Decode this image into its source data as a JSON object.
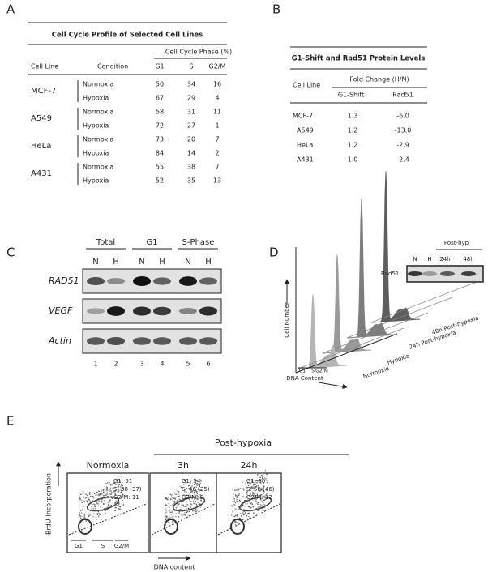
{
  "panel_labels": [
    "A",
    "B",
    "C",
    "D",
    "E"
  ],
  "panel_a": {
    "title": "Cell Cycle Profile of Selected Cell Lines",
    "group_header": "Cell Cycle Phase (%)",
    "columns": [
      "Cell Line",
      "Condition",
      "G1",
      "S",
      "G2/M"
    ],
    "rows": [
      {
        "cell_line": "MCF-7",
        "conditions": [
          {
            "condition": "Normoxia",
            "values": [
              50,
              34,
              16
            ]
          },
          {
            "condition": "Hypoxia",
            "values": [
              67,
              29,
              4
            ]
          }
        ]
      },
      {
        "cell_line": "A549",
        "conditions": [
          {
            "condition": "Normoxia",
            "values": [
              58,
              31,
              11
            ]
          },
          {
            "condition": "Hypoxia",
            "values": [
              72,
              27,
              1
            ]
          }
        ]
      },
      {
        "cell_line": "HeLa",
        "conditions": [
          {
            "condition": "Normoxia",
            "values": [
              73,
              20,
              7
            ]
          },
          {
            "condition": "Hypoxia",
            "values": [
              84,
              14,
              2
            ]
          }
        ]
      },
      {
        "cell_line": "A431",
        "conditions": [
          {
            "condition": "Normoxia",
            "values": [
              55,
              38,
              7
            ]
          },
          {
            "condition": "Hypoxia",
            "values": [
              52,
              35,
              13
            ]
          }
        ]
      }
    ]
  },
  "panel_b": {
    "title": "G1-Shift and Rad51 Protein Levels",
    "group_header": "Fold Change (H/N)",
    "columns": [
      "Cell Line",
      "G1-Shift",
      "Rad51"
    ],
    "rows": [
      [
        "MCF-7",
        "1.3",
        "-6.0"
      ],
      [
        "A549",
        "1.2",
        "-13.0"
      ],
      [
        "HeLa",
        "1.2",
        "-2.9"
      ],
      [
        "A431",
        "1.0",
        "-2.4"
      ]
    ]
  },
  "panel_c": {
    "groups": [
      "Total",
      "G1",
      "S-Phase"
    ],
    "lane_conditions": [
      "N",
      "H",
      "N",
      "H",
      "N",
      "H"
    ],
    "genes": [
      "RAD51",
      "VEGF",
      "Actin"
    ],
    "lane_numbers": [
      "1",
      "2",
      "3",
      "4",
      "5",
      "6"
    ]
  },
  "panel_d": {
    "y_axis": "Cell Number",
    "x_axis": "DNA Content",
    "phases": [
      "G1",
      "S",
      "G2/M"
    ],
    "conditions": [
      "Normoxia",
      "Hypoxia",
      "24h Post-hypoxia",
      "48h Post-hypoxia"
    ],
    "inset": {
      "group": "Post-hyp",
      "lanes": [
        "N",
        "H",
        "24h",
        "48h"
      ],
      "protein": "Rad51"
    }
  },
  "panel_e": {
    "group": "Post-hypoxia",
    "y_axis": "BrdU-Incorporation",
    "x_axis": "DNA content",
    "phases": [
      "G1",
      "S",
      "G2/M"
    ],
    "panels": [
      {
        "title": "Normoxia",
        "stats": [
          "G1: 51",
          "S: 38 (37)",
          "G2/M: 11"
        ]
      },
      {
        "title": "3h",
        "stats": [
          "G1: 54",
          "S: 46 (25)",
          "G2/M: 0"
        ]
      },
      {
        "title": "24h",
        "stats": [
          "G1: 30",
          "S: 58 (46)",
          "G2/M: 12"
        ]
      }
    ]
  }
}
